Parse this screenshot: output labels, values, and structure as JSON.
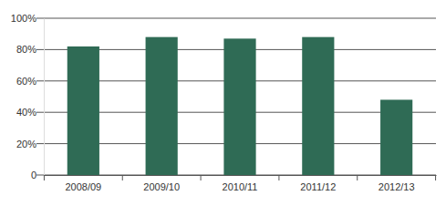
{
  "chart_data": {
    "type": "bar",
    "categories": [
      "2008/09",
      "2009/10",
      "2010/11",
      "2011/12",
      "2012/13"
    ],
    "values": [
      82,
      88,
      87,
      88,
      48
    ],
    "color": "#2f6b55",
    "ylim": [
      0,
      100
    ],
    "yticks": [
      0,
      {
        "value": 20,
        "label": "20%"
      },
      {
        "value": 40,
        "label": "40%"
      },
      {
        "value": 60,
        "label": "60%"
      },
      {
        "value": 80,
        "label": "80%"
      },
      {
        "value": 100,
        "label": "100%"
      }
    ],
    "grid": true
  }
}
